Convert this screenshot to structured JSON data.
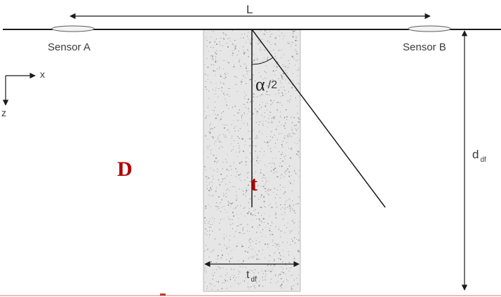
{
  "labels": {
    "length": "L",
    "sensor_a": "Sensor A",
    "sensor_b": "Sensor B",
    "axis_x": "x",
    "axis_z": "z",
    "angle_symbol": "α",
    "angle_divisor": "/2",
    "depth_main": "d",
    "depth_sub": "df",
    "width_main": "t",
    "width_sub": "df",
    "overlay_d": "D",
    "overlay_t": "t"
  },
  "colors": {
    "line": "#1a1a1a",
    "fill": "#e6e6e6",
    "speckle": "#6b6b6b",
    "overlay": "#b00000",
    "bottom_rule": "#e8a3a3"
  }
}
